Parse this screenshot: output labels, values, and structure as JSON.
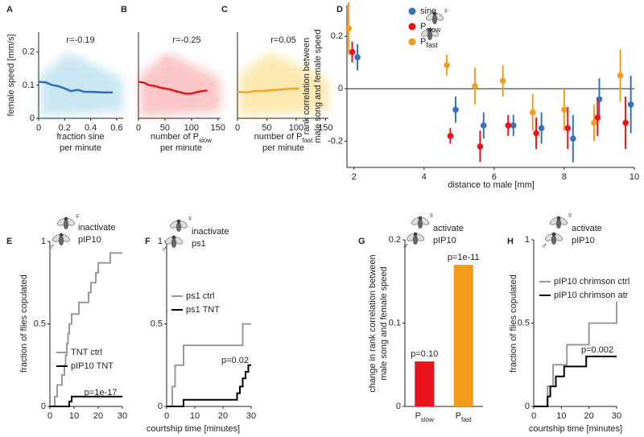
{
  "chart_data": [
    {
      "type": "line",
      "panel": "A",
      "annotation": "r=-0.19",
      "ylabel": "female speed [mm/s]",
      "xlabel": [
        "fraction sine",
        "per minute"
      ],
      "xlim": [
        0,
        0.65
      ],
      "ylim": [
        0,
        0.26
      ],
      "xticks": [
        0,
        0.2,
        0.4,
        0.6
      ],
      "yticks": [
        0,
        0.1,
        0.2
      ],
      "cloud_color": "#9fd3e6",
      "series": [
        {
          "color": "#2f6db5",
          "x": [
            0,
            0.05,
            0.1,
            0.15,
            0.2,
            0.25,
            0.3,
            0.35,
            0.4,
            0.45,
            0.5,
            0.55,
            0.57
          ],
          "values": [
            0.11,
            0.109,
            0.101,
            0.097,
            0.09,
            0.082,
            0.086,
            0.08,
            0.08,
            0.079,
            0.078,
            0.078,
            0.078
          ]
        }
      ]
    },
    {
      "type": "line",
      "panel": "B",
      "annotation": "r=-0.25",
      "xlabel": [
        {
          "text": "number of P",
          "sub": "slow"
        },
        "per minute"
      ],
      "xlim": [
        0,
        155
      ],
      "ylim": [
        0,
        0.26
      ],
      "xticks": [
        0,
        50,
        100,
        150
      ],
      "cloud_color": "#f59a9a",
      "series": [
        {
          "color": "#e8141b",
          "x": [
            0,
            10,
            20,
            30,
            40,
            50,
            60,
            70,
            80,
            90,
            100,
            110,
            120,
            130
          ],
          "values": [
            0.11,
            0.108,
            0.1,
            0.098,
            0.093,
            0.09,
            0.087,
            0.082,
            0.078,
            0.074,
            0.075,
            0.079,
            0.082,
            0.084
          ]
        }
      ]
    },
    {
      "type": "line",
      "panel": "C",
      "annotation": "r=0.05",
      "xlabel": [
        {
          "text": "number of P",
          "sub": "fast"
        },
        "per minute"
      ],
      "xlim": [
        0,
        155
      ],
      "ylim": [
        0,
        0.26
      ],
      "xticks": [
        0,
        50,
        100,
        150
      ],
      "cloud_color": "#f8d873",
      "series": [
        {
          "color": "#f3a61e",
          "x": [
            0,
            15,
            30,
            45,
            60,
            75,
            90,
            105
          ],
          "values": [
            0.08,
            0.078,
            0.082,
            0.083,
            0.085,
            0.087,
            0.089,
            0.09
          ]
        }
      ]
    },
    {
      "type": "scatter",
      "panel": "D",
      "ylabel": [
        "rank correlation between",
        "male song and female speed"
      ],
      "xlabel": "distance to male [mm]",
      "xlim": [
        1.8,
        10
      ],
      "ylim": [
        -0.3,
        0.32
      ],
      "xticks": [
        2,
        4,
        6,
        8,
        10
      ],
      "yticks": [
        -0.2,
        0,
        0.2
      ],
      "zero_line": true,
      "icon_symbols": [
        "♀"
      ],
      "series": [
        {
          "name": "sine",
          "color": "#3a6fba",
          "x": [
            2.1,
            4.9,
            5.7,
            6.55,
            7.35,
            8.25,
            9.0,
            9.9
          ],
          "values": [
            0.12,
            -0.08,
            -0.14,
            -0.14,
            -0.15,
            -0.19,
            -0.04,
            -0.06
          ],
          "errors": [
            0.05,
            0.05,
            0.05,
            0.04,
            0.06,
            0.09,
            0.08,
            0.11
          ]
        },
        {
          "name": "P",
          "name_sub": "slow",
          "color": "#e8141b",
          "x": [
            1.95,
            4.75,
            5.6,
            6.4,
            7.2,
            8.1,
            8.95,
            9.75
          ],
          "values": [
            0.14,
            -0.18,
            -0.22,
            -0.14,
            -0.17,
            -0.15,
            -0.11,
            -0.13
          ],
          "errors": [
            0.04,
            0.03,
            0.06,
            0.04,
            0.06,
            0.08,
            0.07,
            0.1
          ]
        },
        {
          "name": "P",
          "name_sub": "fast",
          "color": "#f39c1e",
          "x": [
            1.85,
            4.65,
            5.45,
            6.25,
            7.1,
            8.0,
            8.85,
            9.6
          ],
          "values": [
            0.23,
            0.09,
            0.01,
            0.03,
            -0.09,
            -0.08,
            -0.13,
            0.05
          ],
          "errors": [
            0.1,
            0.04,
            0.07,
            0.06,
            0.07,
            0.08,
            0.07,
            0.1
          ]
        }
      ]
    },
    {
      "type": "step",
      "panel": "E",
      "ylabel": "fraction of flies copulated",
      "condition": "inactivate",
      "target": "pIP10",
      "icon_symbols": [
        "♀",
        "♂"
      ],
      "annotation": "p=1e-17",
      "xlim": [
        0,
        30
      ],
      "ylim": [
        0,
        1
      ],
      "xticks": [
        0,
        10,
        20,
        30
      ],
      "yticks": [
        0,
        0.5,
        1
      ],
      "series": [
        {
          "name": "TNT ctrl",
          "color": "#999999",
          "x": [
            0,
            2,
            3,
            5,
            6,
            6.5,
            7,
            7.5,
            8,
            9,
            12,
            16,
            17,
            19,
            20,
            25,
            30
          ],
          "values": [
            0,
            0.06,
            0.13,
            0.19,
            0.25,
            0.31,
            0.38,
            0.44,
            0.5,
            0.56,
            0.63,
            0.69,
            0.75,
            0.81,
            0.87,
            0.93,
            0.93
          ]
        },
        {
          "name": "pIP10 TNT",
          "color": "#000000",
          "x": [
            0,
            8,
            9,
            30
          ],
          "values": [
            0,
            0.03,
            0.06,
            0.06
          ]
        }
      ]
    },
    {
      "type": "step",
      "panel": "F",
      "xlabel": "courtship time [minutes]",
      "condition": "inactivate",
      "target": "ps1",
      "icon_symbols": [
        "♀",
        "♂"
      ],
      "annotation": "p=0.02",
      "xlim": [
        0,
        30
      ],
      "ylim": [
        0,
        1
      ],
      "xticks": [
        0,
        10,
        20,
        30
      ],
      "yticks": [
        0,
        0.5,
        1
      ],
      "series": [
        {
          "name": "ps1 ctrl",
          "color": "#999999",
          "x": [
            0,
            2,
            3,
            6,
            24,
            27,
            30
          ],
          "values": [
            0,
            0.12,
            0.25,
            0.37,
            0.37,
            0.5,
            0.5
          ]
        },
        {
          "name": "ps1 TNT",
          "color": "#000000",
          "x": [
            0,
            6,
            24,
            25,
            26,
            27,
            28,
            29,
            30
          ],
          "values": [
            0,
            0.04,
            0.04,
            0.08,
            0.12,
            0.17,
            0.21,
            0.25,
            0.25
          ]
        }
      ]
    },
    {
      "type": "bar",
      "panel": "G",
      "ylabel": [
        "change in rank correlation between",
        "male song and female speed"
      ],
      "condition": "activate",
      "target": "pIP10",
      "icon_symbols": [
        "♀",
        "♂"
      ],
      "categories": [
        {
          "text": "P",
          "sub": "slow"
        },
        {
          "text": "P",
          "sub": "fast"
        }
      ],
      "values": [
        0.054,
        0.17
      ],
      "colors": [
        "#e8141b",
        "#f39c1e"
      ],
      "bar_annotations": [
        "p=0.10",
        "p=1e-11"
      ],
      "ylim": [
        0,
        0.2
      ],
      "yticks": [
        0,
        0.1,
        0.2
      ]
    },
    {
      "type": "step",
      "panel": "H",
      "ylabel": "fraction of flies copulated",
      "xlabel": "courtship time [minutes]",
      "condition": "activate",
      "target": "pIP10",
      "icon_symbols": [
        "♀",
        "♂"
      ],
      "annotation": "p=0.002",
      "xlim": [
        0,
        30
      ],
      "ylim": [
        0,
        1
      ],
      "xticks": [
        0,
        10,
        20,
        30
      ],
      "yticks": [
        0,
        0.5,
        1
      ],
      "series": [
        {
          "name": "pIP10 chrimson ctrl",
          "color": "#999999",
          "x": [
            0,
            5,
            7,
            12,
            20,
            30
          ],
          "values": [
            0,
            0.12,
            0.25,
            0.37,
            0.5,
            0.63
          ]
        },
        {
          "name": "pIP10 chrimson atr",
          "color": "#000000",
          "x": [
            0,
            5,
            6,
            8,
            11,
            19,
            25,
            30
          ],
          "values": [
            0,
            0.06,
            0.12,
            0.18,
            0.24,
            0.3,
            0.3,
            0.3
          ]
        }
      ]
    }
  ]
}
